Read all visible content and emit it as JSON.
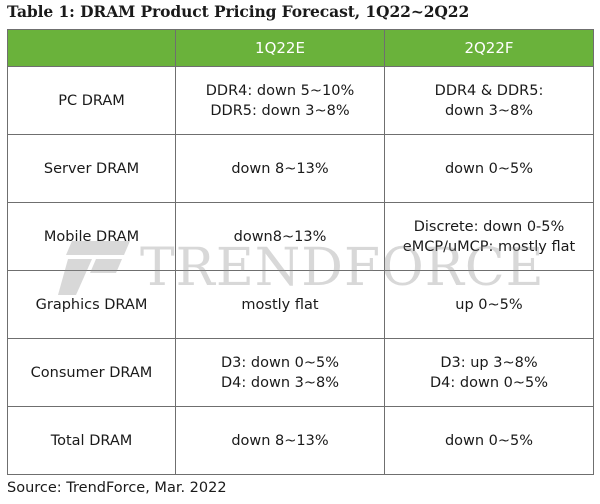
{
  "title": "Table 1: DRAM Product Pricing Forecast, 1Q22~2Q22",
  "table": {
    "headers": [
      "",
      "1Q22E",
      "2Q22F"
    ],
    "rows": [
      {
        "label": "PC DRAM",
        "q1": [
          "DDR4: down 5~10%",
          "DDR5: down 3~8%"
        ],
        "q2": [
          "DDR4 & DDR5:",
          "down 3~8%"
        ]
      },
      {
        "label": "Server DRAM",
        "q1": [
          "down 8~13%"
        ],
        "q2": [
          "down 0~5%"
        ]
      },
      {
        "label": "Mobile DRAM",
        "q1": [
          "down8~13%"
        ],
        "q2": [
          "Discrete: down 0-5%",
          "eMCP/uMCP: mostly flat"
        ]
      },
      {
        "label": "Graphics DRAM",
        "q1": [
          "mostly flat"
        ],
        "q2": [
          "up 0~5%"
        ]
      },
      {
        "label": "Consumer DRAM",
        "q1": [
          "D3: down 0~5%",
          "D4: down 3~8%"
        ],
        "q2": [
          "D3: up 3~8%",
          "D4: down 0~5%"
        ]
      },
      {
        "label": "Total DRAM",
        "q1": [
          "down 8~13%"
        ],
        "q2": [
          "down 0~5%"
        ]
      }
    ]
  },
  "watermark": {
    "text": "TRENDFORCE",
    "logo_icon": "trendforce-logo-icon"
  },
  "source": "Source: TrendForce, Mar. 2022",
  "colors": {
    "header_bg": "#6ab23b",
    "header_text": "#ffffff",
    "border": "#6f6f6f",
    "watermark": "#8a8a8a"
  }
}
